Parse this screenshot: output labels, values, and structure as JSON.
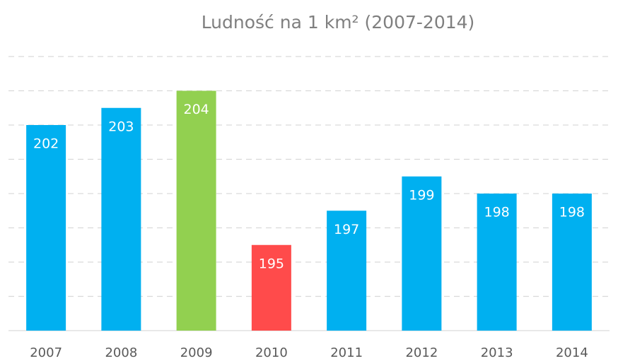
{
  "chart_data": {
    "type": "bar",
    "title": "Ludność na 1 km² (2007-2014)",
    "categories": [
      "2007",
      "2008",
      "2009",
      "2010",
      "2011",
      "2012",
      "2013",
      "2014"
    ],
    "values": [
      202,
      203,
      204,
      195,
      197,
      199,
      198,
      198
    ],
    "colors": [
      "#00b0f0",
      "#00b0f0",
      "#92d050",
      "#ff4b4b",
      "#00b0f0",
      "#00b0f0",
      "#00b0f0",
      "#00b0f0"
    ],
    "ylim": [
      190,
      206
    ],
    "yticks": [
      190,
      192,
      194,
      196,
      198,
      200,
      202,
      204,
      206
    ],
    "grid": true
  }
}
